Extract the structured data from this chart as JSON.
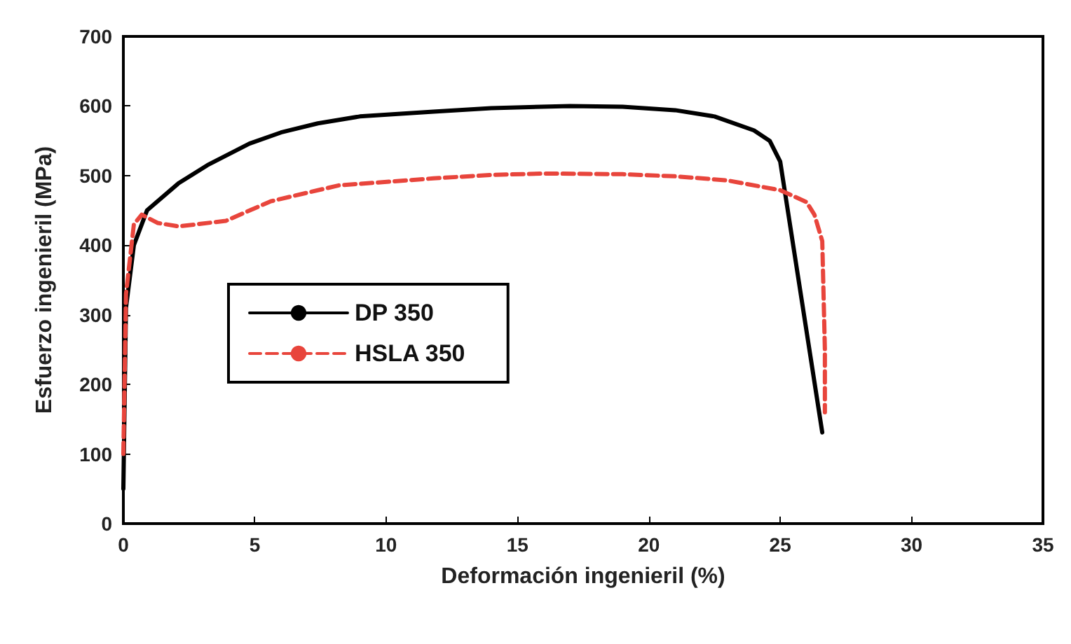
{
  "chart_data": {
    "type": "line",
    "xlabel": "Deformación ingenieril (%)",
    "ylabel": "Esfuerzo ingenieril (MPa)",
    "xlim": [
      0,
      35
    ],
    "xticks": [
      0,
      5,
      10,
      15,
      20,
      25,
      30,
      35
    ],
    "ylim": [
      0,
      700
    ],
    "yticks": [
      0,
      100,
      200,
      300,
      400,
      500,
      600,
      700
    ],
    "grid": false,
    "legend": "left",
    "marker": "none",
    "series": [
      {
        "name": "DP 350",
        "color": "#000000",
        "line_style": "solid",
        "x": [
          0,
          0.1,
          0.4,
          0.9,
          2.1,
          3.2,
          4.8,
          6,
          7.4,
          9,
          11.8,
          14,
          17,
          19,
          21,
          22.5,
          24,
          24.6,
          25,
          26.6
        ],
        "values": [
          50,
          310,
          400,
          450,
          489,
          515,
          546,
          562,
          575,
          585,
          592,
          597,
          600,
          599,
          594,
          585,
          565,
          550,
          520,
          131
        ]
      },
      {
        "name": "HSLA 350",
        "color": "#e8453c",
        "line_style": "dashed",
        "x": [
          0,
          0.1,
          0.4,
          0.7,
          1.3,
          2.1,
          3.9,
          5.6,
          8.2,
          11.8,
          14,
          16,
          19,
          21,
          23,
          25,
          26,
          26.3,
          26.6,
          26.7,
          26.7
        ],
        "values": [
          100,
          330,
          430,
          444,
          432,
          427,
          435,
          463,
          486,
          496,
          501,
          503,
          502,
          499,
          493,
          479,
          462,
          444,
          406,
          250,
          160
        ]
      }
    ]
  }
}
